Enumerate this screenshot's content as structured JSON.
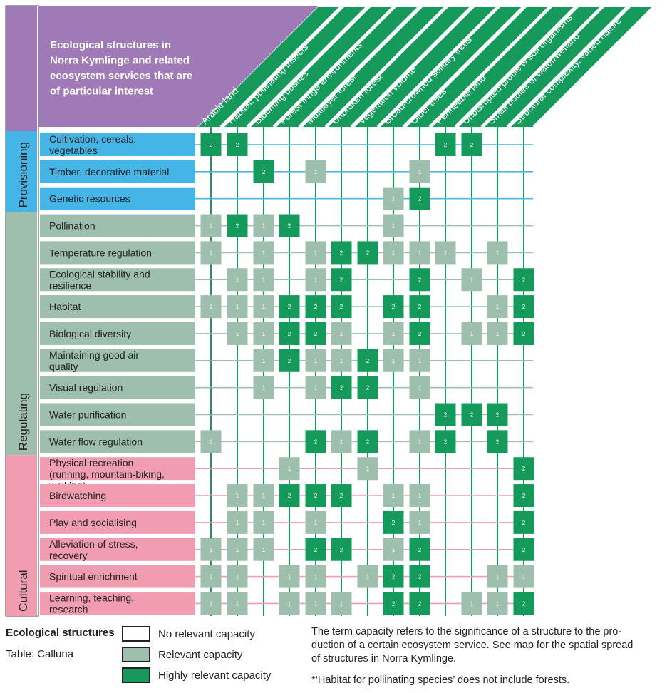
{
  "colors": {
    "purple": "#a07ab7",
    "green_dark": "#169a5c",
    "green_light": "#9fbfae",
    "blue": "#45b4e6",
    "blue_line": "#4cb6e4",
    "pink": "#f09cb1",
    "regulating_line": "#9fbfae",
    "border": "#444444"
  },
  "header": {
    "title_lines": [
      "Ecological structures in",
      "Norra Kymlinge and related",
      "ecosystem services that are",
      "of particular interest"
    ]
  },
  "chart_data": {
    "type": "heatmap",
    "title": "Ecological structures in Norra Kymlinge and related ecosystem services that are of particular interest",
    "columns": [
      "Arable land",
      "Habitat, pollinating insects*",
      "Blooming bushes",
      "Forest fringe environments",
      "Multilayer forest",
      "Unbroken forest",
      "Vegetation volume",
      "Broad-crowned solitary trees",
      "Older trees",
      "Permeable land",
      "Undisrupted profile w soil organisms",
      "Small bodies of water/wetland",
      "Structural complexity, varied nature"
    ],
    "groups": [
      {
        "name": "Provisioning",
        "rows": [
          {
            "label": "Cultivation, cereals, vegetables",
            "values": [
              2,
              2,
              0,
              0,
              0,
              0,
              0,
              0,
              0,
              2,
              2,
              0,
              0
            ]
          },
          {
            "label": "Timber, decorative material",
            "values": [
              0,
              0,
              2,
              0,
              1,
              0,
              0,
              0,
              1,
              0,
              0,
              0,
              0
            ]
          },
          {
            "label": "Genetic resources",
            "values": [
              0,
              0,
              0,
              0,
              0,
              0,
              0,
              1,
              2,
              0,
              0,
              0,
              0
            ]
          }
        ]
      },
      {
        "name": "Regulating",
        "rows": [
          {
            "label": "Pollination",
            "values": [
              1,
              2,
              1,
              2,
              0,
              0,
              0,
              1,
              0,
              0,
              0,
              0,
              0
            ]
          },
          {
            "label": "Temperature regulation",
            "values": [
              1,
              0,
              1,
              0,
              1,
              2,
              2,
              1,
              1,
              1,
              0,
              1,
              0
            ]
          },
          {
            "label": "Ecological stability and resilience",
            "values": [
              0,
              1,
              1,
              0,
              1,
              2,
              0,
              0,
              2,
              0,
              1,
              0,
              2
            ]
          },
          {
            "label": "Habitat",
            "values": [
              1,
              1,
              1,
              2,
              2,
              2,
              0,
              2,
              2,
              0,
              0,
              1,
              2
            ]
          },
          {
            "label": "Biological diversity",
            "values": [
              0,
              1,
              1,
              2,
              2,
              1,
              0,
              1,
              2,
              0,
              1,
              1,
              2
            ]
          },
          {
            "label": "Maintaining good air quality",
            "values": [
              0,
              0,
              1,
              2,
              1,
              1,
              2,
              1,
              1,
              0,
              0,
              0,
              0
            ]
          },
          {
            "label": "Visual regulation",
            "values": [
              0,
              0,
              1,
              0,
              1,
              2,
              2,
              0,
              1,
              0,
              0,
              0,
              0
            ]
          },
          {
            "label": "Water purification",
            "values": [
              0,
              0,
              0,
              0,
              0,
              0,
              0,
              0,
              0,
              2,
              2,
              2,
              0
            ]
          },
          {
            "label": "Water flow regulation",
            "values": [
              1,
              0,
              0,
              0,
              2,
              1,
              2,
              0,
              1,
              2,
              0,
              2,
              0
            ]
          }
        ]
      },
      {
        "name": "Cultural",
        "rows": [
          {
            "label": "Physical recreation (running, mountain-biking, walking)",
            "values": [
              0,
              0,
              0,
              1,
              0,
              0,
              1,
              0,
              0,
              0,
              0,
              0,
              2
            ]
          },
          {
            "label": "Birdwatching",
            "values": [
              0,
              1,
              1,
              2,
              2,
              2,
              0,
              1,
              1,
              0,
              0,
              0,
              2
            ]
          },
          {
            "label": "Play and socialising",
            "values": [
              0,
              1,
              1,
              0,
              1,
              0,
              0,
              2,
              1,
              0,
              0,
              0,
              2
            ]
          },
          {
            "label": "Alleviation of stress, recovery",
            "values": [
              1,
              1,
              1,
              0,
              2,
              2,
              0,
              1,
              2,
              0,
              0,
              0,
              2
            ]
          },
          {
            "label": "Spiritual enrichment",
            "values": [
              1,
              1,
              0,
              1,
              1,
              0,
              1,
              2,
              2,
              0,
              0,
              1,
              1
            ]
          },
          {
            "label": "Learning, teaching, research",
            "values": [
              1,
              1,
              0,
              1,
              1,
              1,
              0,
              2,
              2,
              0,
              1,
              1,
              2
            ]
          }
        ]
      }
    ],
    "cell_labels": {
      "1": "1",
      "2": "2"
    }
  },
  "legend": {
    "heading": "Ecological structures",
    "source": "Table: Calluna",
    "items": [
      {
        "label": "No relevant capacity",
        "color": "#ffffff"
      },
      {
        "label": "Relevant capacity",
        "color": "#9fbfae"
      },
      {
        "label": "Highly relevant capacity",
        "color": "#169a5c"
      }
    ]
  },
  "notes": {
    "capacity_lines": [
      "The term capacity refers to the significance of a structure to the pro-",
      "duction of a certain ecosystem service. See map for the spatial spread",
      "of structures in Norra Kymlinge."
    ],
    "footnote": "*‘Habitat for pollinating species’ does not include forests."
  }
}
